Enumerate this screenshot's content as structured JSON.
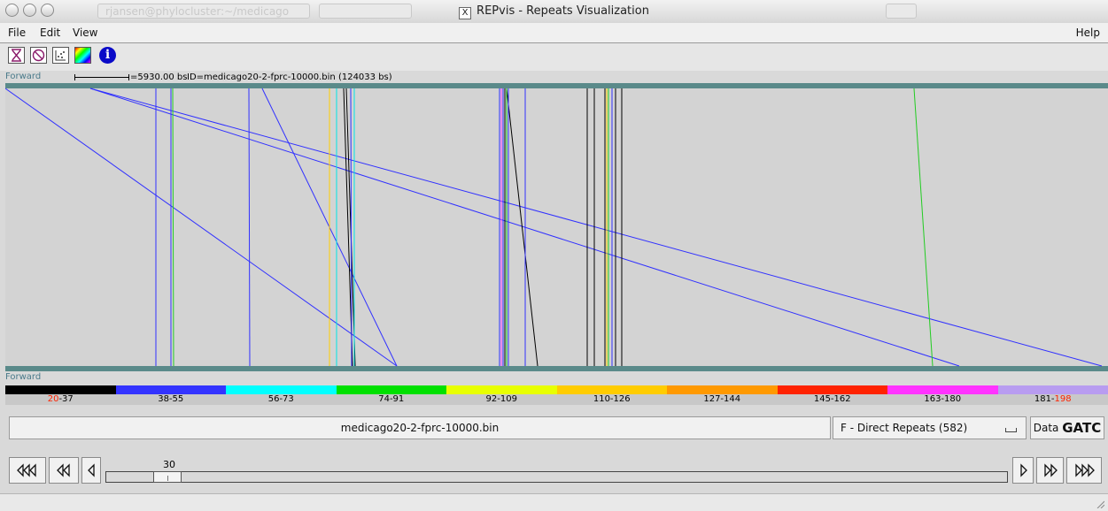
{
  "window": {
    "title": "REPvis - Repeats Visualization",
    "background_window_text": "rjansen@phylocluster:~/medicago"
  },
  "menu": {
    "file": "File",
    "edit": "Edit",
    "view": "View",
    "help": "Help"
  },
  "toolbar": {
    "icons": [
      "hourglass-x-icon",
      "no-entry-icon",
      "scatter-plot-icon",
      "color-palette-icon",
      "info-icon"
    ],
    "info_glyph": "i"
  },
  "header": {
    "strand_top": "Forward",
    "scale": "=5930.00 bs",
    "id": "ID=medicago20-2-fprc-10000.bin (124033 bs)"
  },
  "canvas": {
    "strand_bottom": "Forward",
    "colors": {
      "background": "#d3d3d3",
      "track": "#5a8a8a"
    },
    "repeats": [
      {
        "x1": 0,
        "x2": 442,
        "color": "#3030ff"
      },
      {
        "x1": 96,
        "x2": 1077,
        "color": "#3030ff"
      },
      {
        "x1": 96,
        "x2": 1238,
        "color": "#3030ff"
      },
      {
        "x1": 290,
        "x2": 442,
        "color": "#3030ff"
      },
      {
        "x1": 1026,
        "x2": 1047,
        "color": "#22cc22"
      },
      {
        "x1": 566,
        "x2": 601,
        "color": "#000000"
      },
      {
        "x1": 382,
        "x2": 392,
        "color": "#000000"
      },
      {
        "x1": 385,
        "x2": 395,
        "color": "#000000"
      },
      {
        "x1": 170,
        "x2": 170,
        "color": "#3030ff"
      },
      {
        "x1": 187,
        "x2": 187,
        "color": "#3030ff"
      },
      {
        "x1": 189,
        "x2": 190,
        "color": "#22cc22"
      },
      {
        "x1": 275,
        "x2": 276,
        "color": "#3030ff"
      },
      {
        "x1": 366,
        "x2": 366,
        "color": "#ffcc00"
      },
      {
        "x1": 374,
        "x2": 374,
        "color": "#00e5e5"
      },
      {
        "x1": 390,
        "x2": 391,
        "color": "#3030ff"
      },
      {
        "x1": 394,
        "x2": 394,
        "color": "#00e5e5"
      },
      {
        "x1": 558,
        "x2": 558,
        "color": "#3030ff"
      },
      {
        "x1": 560,
        "x2": 560,
        "color": "#ff44ff"
      },
      {
        "x1": 562,
        "x2": 562,
        "color": "#3030ff"
      },
      {
        "x1": 564,
        "x2": 564,
        "color": "#000000"
      },
      {
        "x1": 566,
        "x2": 566,
        "color": "#22cc22"
      },
      {
        "x1": 568,
        "x2": 568,
        "color": "#3030ff"
      },
      {
        "x1": 587,
        "x2": 587,
        "color": "#3030ff"
      },
      {
        "x1": 657,
        "x2": 657,
        "color": "#000000"
      },
      {
        "x1": 665,
        "x2": 665,
        "color": "#000000"
      },
      {
        "x1": 677,
        "x2": 677,
        "color": "#000000"
      },
      {
        "x1": 679,
        "x2": 679,
        "color": "#ffcc00"
      },
      {
        "x1": 681,
        "x2": 681,
        "color": "#22cc22"
      },
      {
        "x1": 685,
        "x2": 685,
        "color": "#3030ff"
      },
      {
        "x1": 689,
        "x2": 689,
        "color": "#000000"
      },
      {
        "x1": 696,
        "x2": 696,
        "color": "#000000"
      }
    ]
  },
  "legend": [
    {
      "label_a": "20",
      "label_b": "-37",
      "a_red": true,
      "color": "#000000"
    },
    {
      "label_a": "38-55",
      "label_b": "",
      "a_red": false,
      "color": "#3333ff"
    },
    {
      "label_a": "56-73",
      "label_b": "",
      "a_red": false,
      "color": "#00ffff"
    },
    {
      "label_a": "74-91",
      "label_b": "",
      "a_red": false,
      "color": "#00e000"
    },
    {
      "label_a": "92-109",
      "label_b": "",
      "a_red": false,
      "color": "#e8ff00"
    },
    {
      "label_a": "110-126",
      "label_b": "",
      "a_red": false,
      "color": "#ffcc00"
    },
    {
      "label_a": "127-144",
      "label_b": "",
      "a_red": false,
      "color": "#ff9900"
    },
    {
      "label_a": "145-162",
      "label_b": "",
      "a_red": false,
      "color": "#ff2200"
    },
    {
      "label_a": "163-180",
      "label_b": "",
      "a_red": false,
      "color": "#ff33ff"
    },
    {
      "label_a": "181-",
      "label_b": "198",
      "a_red": false,
      "color": "#b89cf0"
    }
  ],
  "controls": {
    "filename": "medicago20-2-fprc-10000.bin",
    "repeat_type": "F - Direct Repeats (582)",
    "data_label": "Data",
    "data_bold": "GATC",
    "slider_value": "30",
    "slider_fraction": 0.055
  }
}
